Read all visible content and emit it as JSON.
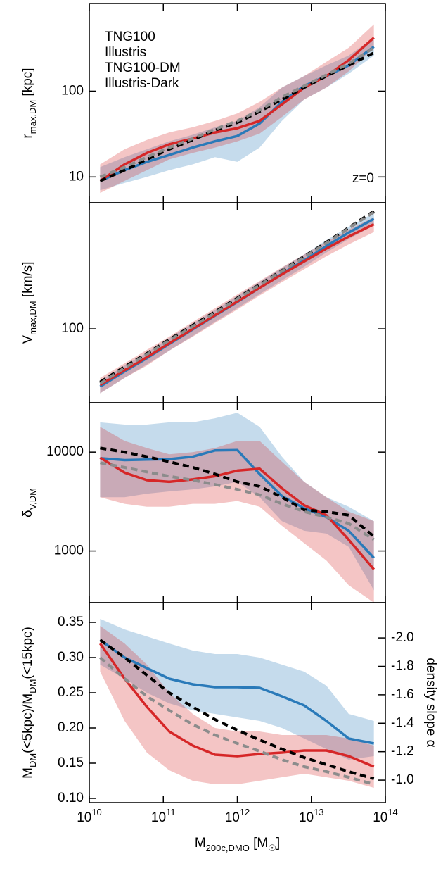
{
  "chart_data": [
    {
      "type": "line",
      "log_y": true,
      "legend": "upper left",
      "annotation": "z=0",
      "ylabel": [
        {
          "text": "r"
        },
        {
          "sub": "max,DM"
        },
        {
          "text": " [kpc]"
        }
      ],
      "xlim": [
        10000000000.0,
        100000000000000.0
      ],
      "xticks": [
        10000000000.0,
        100000000000.0,
        1000000000000.0,
        10000000000000.0,
        100000000000000.0
      ],
      "ylim": [
        5,
        1050
      ],
      "yticks": [
        10,
        100
      ],
      "x": [
        14000000000.0,
        30000000000.0,
        60000000000.0,
        120000000000.0,
        250000000000.0,
        500000000000.0,
        1000000000000.0,
        2000000000000.0,
        4000000000000.0,
        8000000000000.0,
        16000000000000.0,
        32000000000000.0,
        70000000000000.0
      ],
      "series": [
        {
          "name": "TNG100",
          "color": "#2a7ab9",
          "dash": false,
          "values": [
            9,
            12,
            15,
            18,
            22,
            26,
            30,
            42,
            75,
            115,
            150,
            200,
            330
          ],
          "band": {
            "low": [
              7,
              8.5,
              10,
              12,
              14,
              17,
              15,
              22,
              45,
              80,
              110,
              160,
              260
            ],
            "high": [
              13,
              17,
              21,
              26,
              31,
              38,
              45,
              65,
              110,
              150,
              200,
              260,
              420
            ]
          }
        },
        {
          "name": "Illustris",
          "color": "#d62728",
          "dash": false,
          "values": [
            9,
            14,
            19,
            24,
            28,
            33,
            37,
            45,
            70,
            110,
            150,
            230,
            420
          ],
          "band": {
            "low": [
              6.5,
              9,
              12,
              16,
              19,
              22,
              26,
              32,
              50,
              80,
              110,
              170,
              320
            ],
            "high": [
              14,
              21,
              27,
              33,
              38,
              45,
              55,
              75,
              110,
              150,
              220,
              320,
              600
            ]
          }
        },
        {
          "name": "TNG100-DM",
          "color": "#000000",
          "dash": true,
          "values": [
            9,
            12,
            16,
            21,
            27,
            35,
            43,
            58,
            80,
            110,
            150,
            200,
            280
          ]
        },
        {
          "name": "Illustris-Dark",
          "color": "#8c8c8c",
          "dash": true,
          "values": [
            10,
            13,
            17,
            22,
            28,
            36,
            45,
            60,
            85,
            115,
            155,
            210,
            320
          ]
        }
      ]
    },
    {
      "type": "line",
      "log_y": true,
      "ylabel": [
        {
          "text": "V"
        },
        {
          "sub": "max,DM"
        },
        {
          "text": " [km/s]"
        }
      ],
      "xlim": [
        10000000000.0,
        100000000000000.0
      ],
      "xticks": [
        10000000000.0,
        100000000000.0,
        1000000000000.0,
        10000000000000.0,
        100000000000000.0
      ],
      "ylim": [
        30,
        780
      ],
      "yticks": [
        100
      ],
      "x": [
        14000000000.0,
        30000000000.0,
        60000000000.0,
        120000000000.0,
        250000000000.0,
        500000000000.0,
        1000000000000.0,
        2000000000000.0,
        4000000000000.0,
        8000000000000.0,
        16000000000000.0,
        32000000000000.0,
        70000000000000.0
      ],
      "series": [
        {
          "color": "#2a7ab9",
          "dash": false,
          "values": [
            39,
            50,
            62,
            78,
            99,
            124,
            155,
            195,
            245,
            305,
            385,
            480,
            600
          ],
          "band": {
            "low": [
              35,
              45,
              56,
              70,
              89,
              112,
              140,
              176,
              220,
              275,
              347,
              432,
              540
            ],
            "high": [
              43,
              55,
              68,
              86,
              109,
              136,
              171,
              215,
              270,
              336,
              424,
              528,
              660
            ]
          }
        },
        {
          "color": "#d62728",
          "dash": false,
          "values": [
            40,
            51,
            63,
            79,
            100,
            125,
            156,
            195,
            243,
            300,
            370,
            450,
            550
          ],
          "band": {
            "low": [
              35,
              45,
              55,
              70,
              88,
              110,
              137,
              172,
              214,
              264,
              326,
              396,
              484
            ],
            "high": [
              45,
              57,
              71,
              88,
              112,
              140,
              175,
              218,
              272,
              336,
              414,
              504,
              616
            ]
          }
        },
        {
          "color": "#000000",
          "dash": true,
          "values": [
            42,
            54,
            67,
            84,
            106,
            132,
            165,
            206,
            258,
            325,
            410,
            520,
            680
          ]
        },
        {
          "color": "#8c8c8c",
          "dash": true,
          "values": [
            41,
            53,
            66,
            83,
            104,
            130,
            163,
            204,
            256,
            322,
            405,
            515,
            670
          ]
        }
      ]
    },
    {
      "type": "line",
      "log_y": true,
      "ylabel": [
        {
          "text": "δ"
        },
        {
          "sub": "V,DM"
        }
      ],
      "xlim": [
        10000000000.0,
        100000000000000.0
      ],
      "xticks": [
        10000000000.0,
        100000000000.0,
        1000000000000.0,
        10000000000000.0,
        100000000000000.0
      ],
      "ylim": [
        300,
        31600
      ],
      "yticks": [
        1000,
        10000
      ],
      "x": [
        14000000000.0,
        30000000000.0,
        60000000000.0,
        120000000000.0,
        250000000000.0,
        500000000000.0,
        1000000000000.0,
        2000000000000.0,
        4000000000000.0,
        8000000000000.0,
        16000000000000.0,
        32000000000000.0,
        70000000000000.0
      ],
      "series": [
        {
          "color": "#2a7ab9",
          "dash": false,
          "values": [
            8700,
            8300,
            8400,
            8500,
            9000,
            10400,
            10500,
            6000,
            3600,
            2700,
            2200,
            1600,
            850
          ],
          "band": {
            "low": [
              3500,
              3500,
              3800,
              4000,
              4200,
              4500,
              5000,
              3500,
              2000,
              1600,
              1500,
              1100,
              400
            ],
            "high": [
              20000,
              19000,
              19000,
              20000,
              20000,
              22000,
              25000,
              18000,
              9000,
              5000,
              3500,
              2800,
              2000
            ]
          }
        },
        {
          "color": "#d62728",
          "dash": false,
          "values": [
            8800,
            6200,
            5200,
            5000,
            5300,
            5700,
            6500,
            6800,
            4300,
            2900,
            2300,
            1300,
            650
          ],
          "band": {
            "low": [
              3500,
              3000,
              2800,
              2800,
              3000,
              3000,
              3200,
              2800,
              1800,
              1200,
              800,
              450,
              300
            ],
            "high": [
              18000,
              13000,
              11000,
              9500,
              10000,
              11000,
              13000,
              13000,
              8000,
              5000,
              3500,
              2500,
              2000
            ]
          }
        },
        {
          "color": "#000000",
          "dash": true,
          "values": [
            11000,
            10000,
            9000,
            8000,
            7000,
            6000,
            5000,
            4500,
            3500,
            2600,
            2500,
            2300,
            1400
          ]
        },
        {
          "color": "#8c8c8c",
          "dash": true,
          "values": [
            7800,
            7000,
            6300,
            5700,
            5200,
            4700,
            4200,
            3700,
            3000,
            2500,
            2200,
            1900,
            1300
          ]
        }
      ]
    },
    {
      "type": "line",
      "log_y": false,
      "ylabel": [
        {
          "text": "M"
        },
        {
          "sub": "DM"
        },
        {
          "text": "(<5kpc)/M"
        },
        {
          "sub": "DM"
        },
        {
          "text": "(<15kpc)"
        }
      ],
      "y2label": "density slope α",
      "xlabel": [
        {
          "text": "M"
        },
        {
          "sub": "200c,DMO"
        },
        {
          "text": " [M"
        },
        {
          "sub": "☉"
        },
        {
          "text": "]"
        }
      ],
      "xlim": [
        10000000000.0,
        100000000000000.0
      ],
      "xticks": [
        {
          "value": 10000000000.0,
          "label": "10",
          "exponent": "10"
        },
        {
          "value": 100000000000.0,
          "label": "10",
          "exponent": "11"
        },
        {
          "value": 1000000000000.0,
          "label": "10",
          "exponent": "12"
        },
        {
          "value": 10000000000000.0,
          "label": "10",
          "exponent": "13"
        },
        {
          "value": 100000000000000.0,
          "label": "10",
          "exponent": "14"
        }
      ],
      "ylim": [
        0.094,
        0.378
      ],
      "yticks": [
        {
          "value": 0.1,
          "label": "0.10"
        },
        0.15,
        {
          "value": 0.2,
          "label": "0.20"
        },
        0.25,
        {
          "value": 0.3,
          "label": "0.30"
        },
        0.35
      ],
      "y2lim": [
        -0.842,
        -2.248
      ],
      "y2ticks": [
        {
          "value": -2,
          "label": "-2.0"
        },
        -1.8,
        -1.6,
        -1.4,
        -1.2,
        {
          "value": -1,
          "label": "-1.0"
        }
      ],
      "x": [
        14000000000.0,
        30000000000.0,
        60000000000.0,
        120000000000.0,
        250000000000.0,
        500000000000.0,
        1000000000000.0,
        2000000000000.0,
        4000000000000.0,
        8000000000000.0,
        16000000000000.0,
        32000000000000.0,
        70000000000000.0
      ],
      "series": [
        {
          "color": "#2a7ab9",
          "dash": false,
          "values": [
            0.325,
            0.3,
            0.285,
            0.27,
            0.262,
            0.258,
            0.258,
            0.257,
            0.245,
            0.232,
            0.21,
            0.185,
            0.178
          ],
          "band": {
            "low": [
              0.29,
              0.27,
              0.25,
              0.235,
              0.225,
              0.22,
              0.215,
              0.21,
              0.2,
              0.185,
              0.17,
              0.155,
              0.16
            ],
            "high": [
              0.355,
              0.34,
              0.33,
              0.32,
              0.31,
              0.305,
              0.305,
              0.3,
              0.29,
              0.28,
              0.26,
              0.22,
              0.21
            ]
          }
        },
        {
          "color": "#d62728",
          "dash": false,
          "values": [
            0.32,
            0.27,
            0.23,
            0.195,
            0.175,
            0.162,
            0.16,
            0.163,
            0.165,
            0.168,
            0.168,
            0.16,
            0.145
          ],
          "band": {
            "low": [
              0.28,
              0.21,
              0.165,
              0.14,
              0.125,
              0.12,
              0.12,
              0.125,
              0.13,
              0.135,
              0.13,
              0.125,
              0.115
            ],
            "high": [
              0.345,
              0.32,
              0.29,
              0.25,
              0.22,
              0.2,
              0.195,
              0.195,
              0.19,
              0.19,
              0.19,
              0.185,
              0.175
            ]
          }
        },
        {
          "color": "#000000",
          "dash": true,
          "values": [
            0.325,
            0.3,
            0.275,
            0.25,
            0.23,
            0.212,
            0.197,
            0.183,
            0.17,
            0.158,
            0.148,
            0.138,
            0.128
          ]
        },
        {
          "color": "#8c8c8c",
          "dash": true,
          "values": [
            0.3,
            0.27,
            0.245,
            0.225,
            0.205,
            0.19,
            0.178,
            0.167,
            0.155,
            0.145,
            0.138,
            0.13,
            0.12
          ]
        }
      ]
    }
  ]
}
